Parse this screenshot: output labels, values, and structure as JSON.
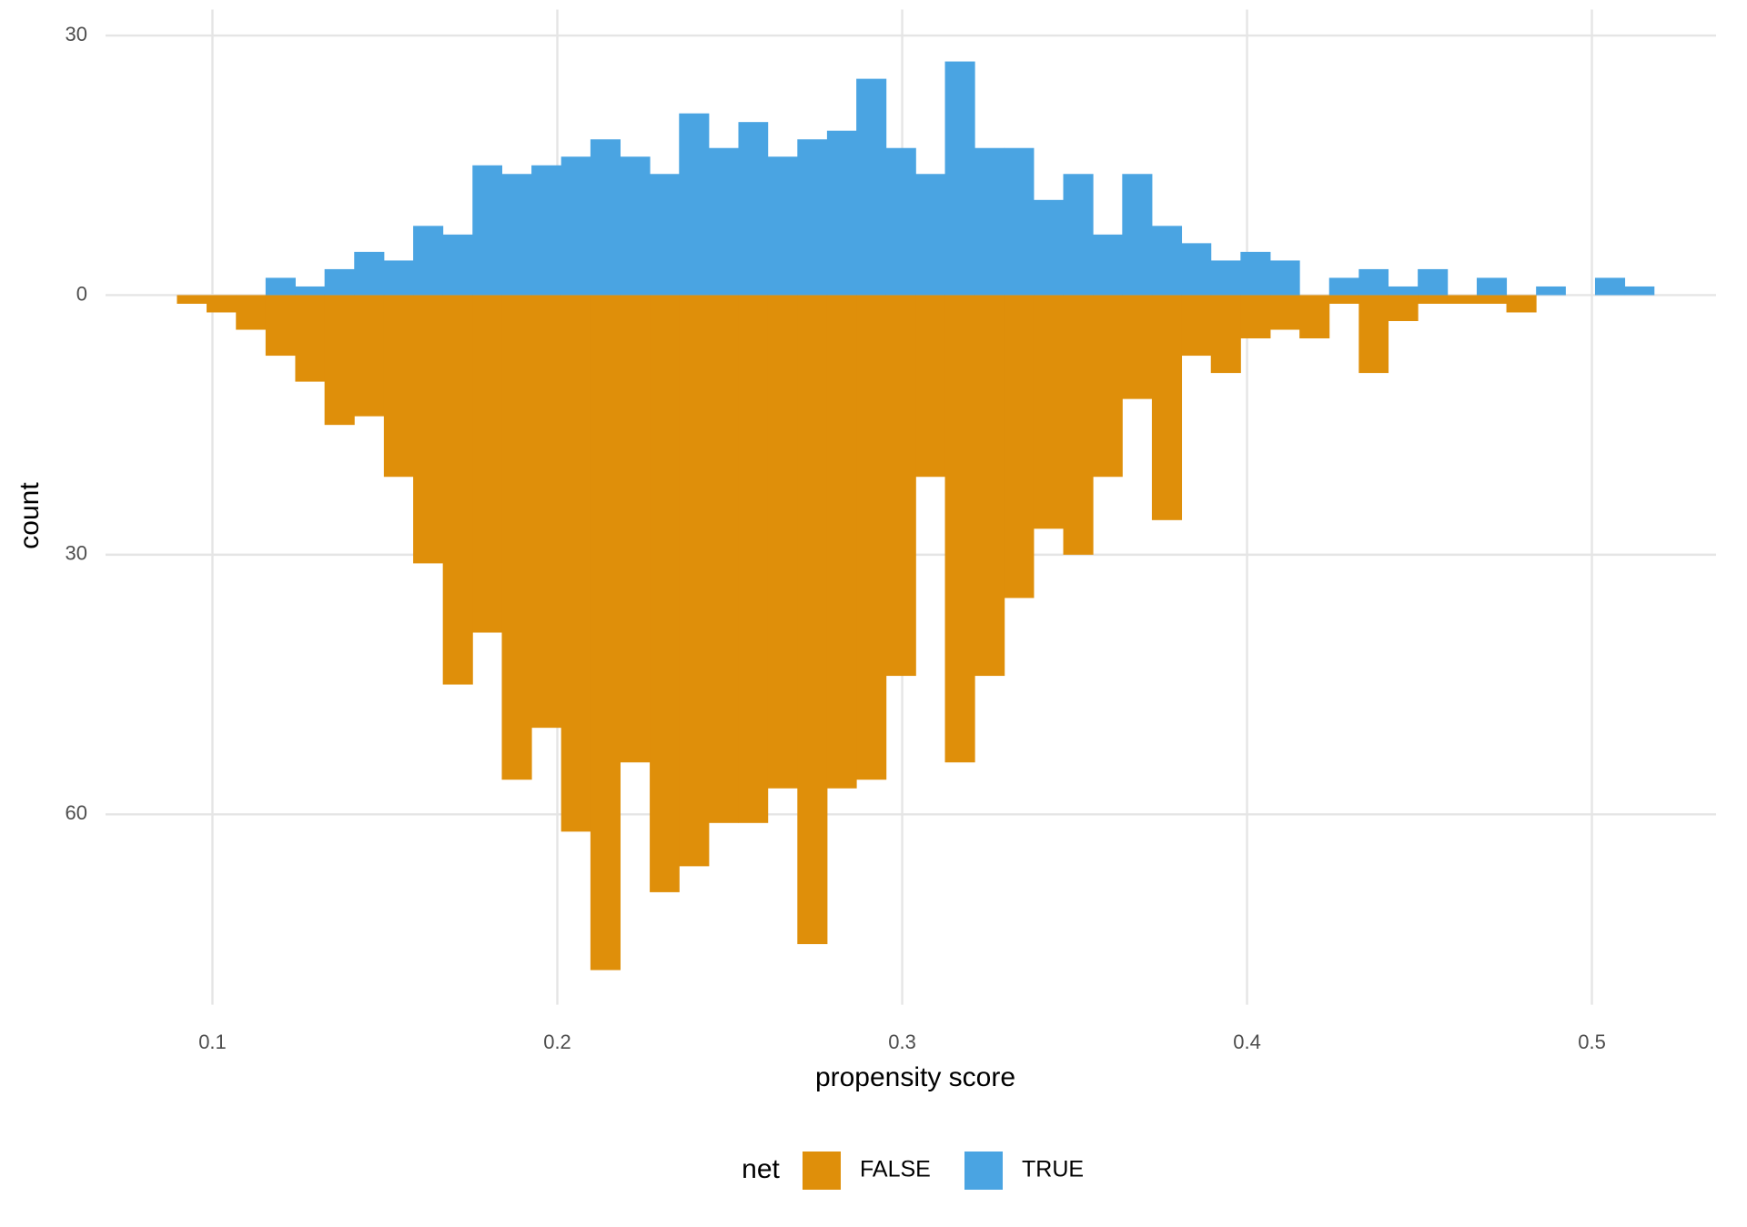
{
  "chart_data": {
    "type": "histogram",
    "x_label": "propensity score",
    "y_label": "count",
    "legend_title": "net",
    "legend_position": "bottom",
    "grid": true,
    "xlim": [
      0.069,
      0.536
    ],
    "ylim": [
      -82,
      33
    ],
    "xticks": [
      0.1,
      0.2,
      0.3,
      0.4,
      0.5
    ],
    "yticks": [
      30,
      0,
      {
        "value": -30,
        "label": "30"
      },
      {
        "value": -60,
        "label": "60"
      }
    ],
    "bins": [
      0.0897,
      0.0983,
      0.1068,
      0.1154,
      0.124,
      0.1325,
      0.1411,
      0.1497,
      0.1582,
      0.1668,
      0.1754,
      0.1839,
      0.1925,
      0.2011,
      0.2096,
      0.2182,
      0.2268,
      0.2353,
      0.2439,
      0.2525,
      0.261,
      0.2696,
      0.2782,
      0.2867,
      0.2953,
      0.3039,
      0.3124,
      0.321,
      0.3296,
      0.3381,
      0.3467,
      0.3553,
      0.3638,
      0.3724,
      0.381,
      0.3895,
      0.3981,
      0.4067,
      0.4152,
      0.4238,
      0.4324,
      0.4409,
      0.4495,
      0.4581,
      0.4666,
      0.4752,
      0.4838,
      0.4923,
      0.5009,
      0.5095,
      0.518
    ],
    "series": [
      {
        "name": "FALSE",
        "color": "#df8f0a",
        "values": [
          -1,
          -2,
          -4,
          -7,
          -10,
          -15,
          -14,
          -21,
          -31,
          -45,
          -39,
          -56,
          -50,
          -62,
          -78,
          -54,
          -69,
          -66,
          -61,
          -61,
          -57,
          -75,
          -57,
          -56,
          -44,
          -21,
          -54,
          -44,
          -35,
          -27,
          -30,
          -21,
          -12,
          -26,
          -7,
          -9,
          -5,
          -4,
          -5,
          -1,
          -9,
          -3,
          -1,
          -1,
          -1,
          -2,
          0,
          0,
          0,
          0
        ]
      },
      {
        "name": "TRUE",
        "color": "#4aa4e2",
        "values": [
          0,
          0,
          0,
          2,
          1,
          3,
          5,
          4,
          8,
          7,
          15,
          14,
          15,
          16,
          18,
          16,
          14,
          21,
          17,
          20,
          16,
          18,
          19,
          25,
          17,
          14,
          27,
          17,
          17,
          11,
          14,
          7,
          14,
          8,
          6,
          4,
          5,
          4,
          0,
          2,
          3,
          1,
          3,
          0,
          2,
          0,
          1,
          0,
          2,
          1
        ]
      }
    ]
  }
}
